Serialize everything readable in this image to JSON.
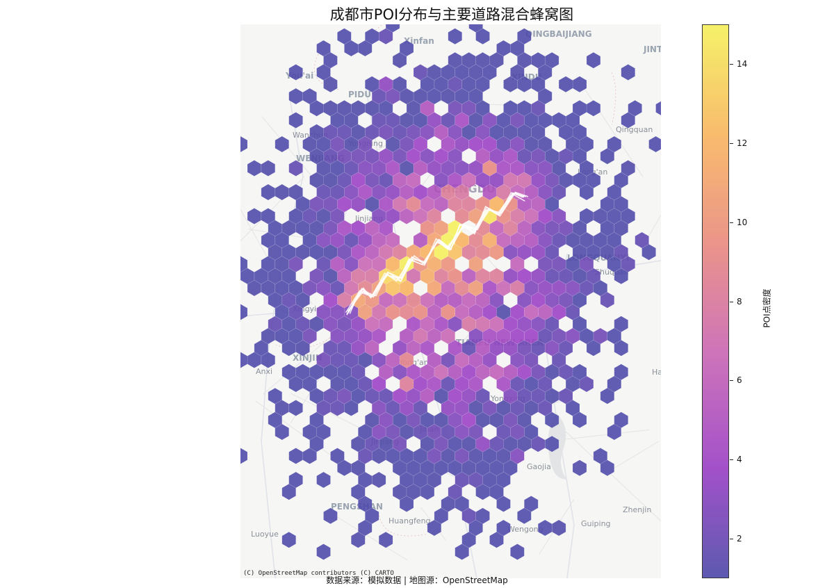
{
  "title": "成都市POI分布与主要道路混合蜂窝图",
  "attribution": "(C) OpenStreetMap contributors (C) CARTO",
  "source_note": "数据来源：模拟数据 | 地图源：OpenStreetMap",
  "colorbar": {
    "label": "POI点密度",
    "ticks": [
      "2",
      "4",
      "6",
      "8",
      "10",
      "12",
      "14"
    ],
    "colors": [
      "#4c48a8",
      "#9a3fc4",
      "#c864b4",
      "#e8887f",
      "#f9b45e",
      "#f5f059"
    ]
  },
  "map_labels": [
    {
      "text": "Xinfan",
      "cls": "district"
    },
    {
      "text": "QINGBAIJIANG",
      "cls": "district"
    },
    {
      "text": "JINTANG",
      "cls": "district"
    },
    {
      "text": "You'ai",
      "cls": "district"
    },
    {
      "text": "PIDU",
      "cls": "district"
    },
    {
      "text": "XINDU",
      "cls": "district"
    },
    {
      "text": "Qingquan",
      "cls": "town"
    },
    {
      "text": "Wanchun",
      "cls": "town"
    },
    {
      "text": "WENJIANG",
      "cls": "district"
    },
    {
      "text": "Yongning",
      "cls": "town"
    },
    {
      "text": "CHENGDU",
      "cls": "city"
    },
    {
      "text": "Long'an",
      "cls": "town"
    },
    {
      "text": "LONGQUANYI",
      "cls": "district"
    },
    {
      "text": "Shuquan",
      "cls": "town"
    },
    {
      "text": "Jinjiang",
      "cls": "town"
    },
    {
      "text": "Xingyi",
      "cls": "town"
    },
    {
      "text": "XINJIN",
      "cls": "district"
    },
    {
      "text": "Anxi",
      "cls": "town"
    },
    {
      "text": "TIANFU NEW AREA",
      "cls": "district"
    },
    {
      "text": "Yong'an",
      "cls": "town"
    },
    {
      "text": "Hailu",
      "cls": "town"
    },
    {
      "text": "Yongxing",
      "cls": "town"
    },
    {
      "text": "Jitian",
      "cls": "town"
    },
    {
      "text": "Jinjiang",
      "cls": "town"
    },
    {
      "text": "Gaojia",
      "cls": "town"
    },
    {
      "text": "PENGSHAN",
      "cls": "district"
    },
    {
      "text": "Huangfeng",
      "cls": "town"
    },
    {
      "text": "Zhenjin",
      "cls": "town"
    },
    {
      "text": "Guiping",
      "cls": "town"
    },
    {
      "text": "Wengong",
      "cls": "town"
    },
    {
      "text": "Luoyue",
      "cls": "town"
    }
  ],
  "chart_data": {
    "type": "heatmap",
    "subtype": "hexbin",
    "title": "成都市POI分布与主要道路混合蜂窝图",
    "colorbar_label": "POI点密度",
    "colorbar_range": [
      1,
      15
    ],
    "colorbar_ticks": [
      2,
      4,
      6,
      8,
      10,
      12,
      14
    ],
    "cmap": "plasma",
    "distribution": {
      "shape": "2D gaussian cluster of POI hexbins centered near central Chengdu",
      "peak_density": 15,
      "typical_core_density": [
        6,
        11
      ],
      "fringe_density": [
        1,
        3
      ]
    },
    "roads": {
      "description": "several overlapping white zig-zag road lines running SW→NE through the core",
      "count": 6
    },
    "basemap": "OpenStreetMap / CARTO light"
  }
}
